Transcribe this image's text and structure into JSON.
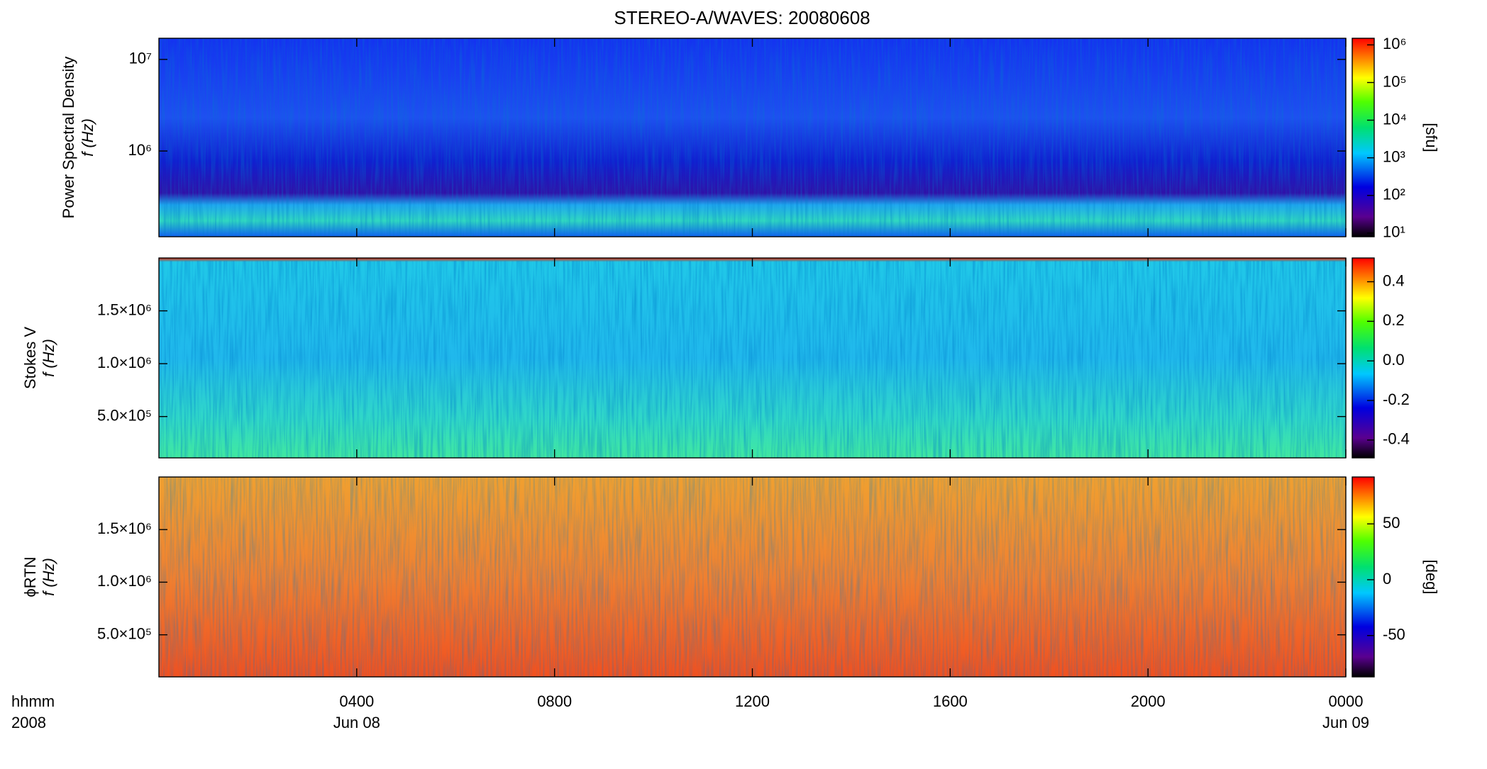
{
  "chart_data": {
    "type": "spectrogram",
    "title": "STEREO-A/WAVES: 20080608",
    "xlim": [
      0,
      24
    ],
    "xticks": [
      {
        "value": 4,
        "label": "0400"
      },
      {
        "value": 8,
        "label": "0800"
      },
      {
        "value": 12,
        "label": "1200"
      },
      {
        "value": 16,
        "label": "1600"
      },
      {
        "value": 20,
        "label": "2000"
      },
      {
        "value": 24,
        "label": "0000"
      }
    ],
    "xdates": [
      {
        "value": 4,
        "label": "Jun 08"
      },
      {
        "value": 24,
        "label": "Jun 09"
      }
    ],
    "xlabel": [
      "hhmm",
      "2008"
    ],
    "panels": [
      {
        "ylabel": [
          "Power Spectral Density",
          "f (Hz)"
        ],
        "log": true,
        "ylim": [
          116000,
          17000000
        ],
        "yticks": [
          {
            "value": 1000000,
            "label": "10⁶"
          },
          {
            "value": 10000000,
            "label": "10⁷"
          }
        ],
        "clog": true,
        "clim": [
          8,
          1500000
        ],
        "clabel": "[sfu]",
        "cticks": [
          {
            "value": 10,
            "label": "10¹"
          },
          {
            "value": 100,
            "label": "10²"
          },
          {
            "value": 1000,
            "label": "10³"
          },
          {
            "value": 10000,
            "label": "10⁴"
          },
          {
            "value": 100000,
            "label": "10⁵"
          },
          {
            "value": 1000000,
            "label": "10⁶"
          }
        ]
      },
      {
        "ylabel": [
          "Stokes V",
          "f (Hz)"
        ],
        "log": false,
        "ylim": [
          109000,
          2000000
        ],
        "yticks": [
          {
            "value": 500000,
            "label": "5.0×10⁵"
          },
          {
            "value": 1000000,
            "label": "1.0×10⁶"
          },
          {
            "value": 1500000,
            "label": "1.5×10⁶"
          }
        ],
        "clog": false,
        "clim": [
          -0.49,
          0.52
        ],
        "cticks": [
          -0.4,
          -0.2,
          {
            "value": 0,
            "label": "0.0"
          },
          0.2,
          0.4
        ]
      },
      {
        "ylabel": [
          "ϕRTN",
          "f (Hz)"
        ],
        "log": false,
        "ylim": [
          100000,
          2000000
        ],
        "yticks": [
          {
            "value": 500000,
            "label": "5.0×10⁵"
          },
          {
            "value": 1000000,
            "label": "1.0×10⁶"
          },
          {
            "value": 1500000,
            "label": "1.5×10⁶"
          }
        ],
        "clog": false,
        "clim": [
          -87,
          92
        ],
        "clabel": "[deg]",
        "cticks": [
          -50,
          0,
          50
        ]
      }
    ]
  }
}
